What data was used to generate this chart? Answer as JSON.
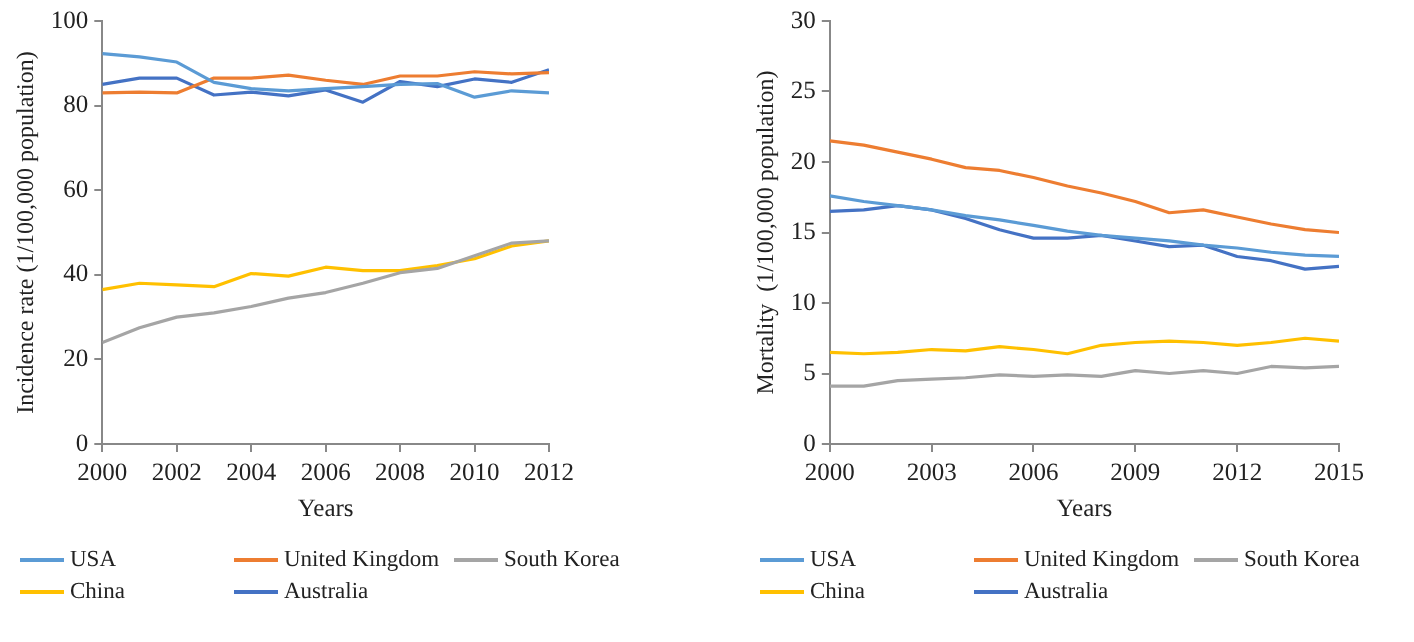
{
  "chart_data": [
    {
      "type": "line",
      "xlabel": "Years",
      "ylabel": "Incidence rate (1/100,000 population)",
      "x": [
        2000,
        2001,
        2002,
        2003,
        2004,
        2005,
        2006,
        2007,
        2008,
        2009,
        2010,
        2011,
        2012
      ],
      "xlim": [
        2000,
        2012
      ],
      "xticks": [
        2000,
        2002,
        2004,
        2006,
        2008,
        2010,
        2012
      ],
      "ylim": [
        0,
        100
      ],
      "yticks": [
        0,
        20,
        40,
        60,
        80,
        100
      ],
      "grid": false,
      "legend": "bottom",
      "marker": "none",
      "line_style": "solid",
      "series": [
        {
          "name": "USA",
          "color": "#5b9bd5",
          "values": [
            92.3,
            91.5,
            90.3,
            85.5,
            84,
            83.5,
            84,
            84.5,
            85,
            85.2,
            82,
            83.5,
            83
          ]
        },
        {
          "name": "United Kingdom",
          "color": "#ed7d31",
          "values": [
            83,
            83.2,
            83,
            86.5,
            86.5,
            87.2,
            86,
            85,
            87,
            87,
            88,
            87.5,
            87.8
          ]
        },
        {
          "name": "South Korea",
          "color": "#a5a5a5",
          "values": [
            24,
            27.5,
            30,
            31,
            32.5,
            34.5,
            35.8,
            38,
            40.5,
            41.5,
            44.5,
            47.5,
            48
          ]
        },
        {
          "name": "China",
          "color": "#ffc000",
          "values": [
            36.5,
            38,
            37.6,
            37.2,
            40.3,
            39.7,
            41.8,
            41,
            41,
            42.2,
            43.8,
            46.8,
            48
          ]
        },
        {
          "name": "Australia",
          "color": "#4472c4",
          "values": [
            85,
            86.5,
            86.5,
            82.5,
            83.2,
            82.3,
            83.7,
            80.8,
            85.7,
            84.5,
            86.3,
            85.5,
            88.5
          ]
        }
      ]
    },
    {
      "type": "line",
      "xlabel": "Years",
      "ylabel": "Mortality  (1/100,000 population)",
      "x": [
        2000,
        2001,
        2002,
        2003,
        2004,
        2005,
        2006,
        2007,
        2008,
        2009,
        2010,
        2011,
        2012,
        2013,
        2014,
        2015
      ],
      "xlim": [
        2000,
        2015
      ],
      "xticks": [
        2000,
        2003,
        2006,
        2009,
        2012,
        2015
      ],
      "ylim": [
        0,
        30
      ],
      "yticks": [
        0,
        5,
        10,
        15,
        20,
        25,
        30
      ],
      "grid": false,
      "legend": "bottom",
      "marker": "none",
      "line_style": "solid",
      "series": [
        {
          "name": "USA",
          "color": "#5b9bd5",
          "values": [
            17.6,
            17.2,
            16.9,
            16.6,
            16.2,
            15.9,
            15.5,
            15.1,
            14.8,
            14.6,
            14.4,
            14.1,
            13.9,
            13.6,
            13.4,
            13.3
          ]
        },
        {
          "name": "United Kingdom",
          "color": "#ed7d31",
          "values": [
            21.5,
            21.2,
            20.7,
            20.2,
            19.6,
            19.4,
            18.9,
            18.3,
            17.8,
            17.2,
            16.4,
            16.6,
            16.1,
            15.6,
            15.2,
            15.0
          ]
        },
        {
          "name": "South Korea",
          "color": "#a5a5a5",
          "values": [
            4.1,
            4.1,
            4.5,
            4.6,
            4.7,
            4.9,
            4.8,
            4.9,
            4.8,
            5.2,
            5.0,
            5.2,
            5.0,
            5.5,
            5.4,
            5.5
          ]
        },
        {
          "name": "China",
          "color": "#ffc000",
          "values": [
            6.5,
            6.4,
            6.5,
            6.7,
            6.6,
            6.9,
            6.7,
            6.4,
            7.0,
            7.2,
            7.3,
            7.2,
            7.0,
            7.2,
            7.5,
            7.3
          ]
        },
        {
          "name": "Australia",
          "color": "#4472c4",
          "values": [
            16.5,
            16.6,
            16.9,
            16.6,
            16.0,
            15.2,
            14.6,
            14.6,
            14.8,
            14.4,
            14.0,
            14.1,
            13.3,
            13.0,
            12.4,
            12.6
          ]
        }
      ]
    }
  ]
}
